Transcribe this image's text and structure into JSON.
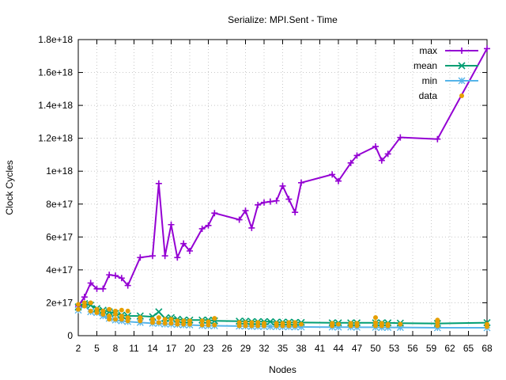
{
  "chart_data": {
    "type": "line",
    "title": "Serialize: MPI.Sent - Time",
    "xlabel": "Nodes",
    "ylabel": "Clock Cycles",
    "xlim": [
      2,
      68
    ],
    "ylim": [
      0,
      1.8e+18
    ],
    "x_ticks": [
      2,
      5,
      8,
      11,
      14,
      17,
      20,
      23,
      26,
      29,
      32,
      35,
      38,
      41,
      44,
      47,
      50,
      53,
      56,
      59,
      62,
      65,
      68
    ],
    "y_ticks": [
      0,
      2e+17,
      4e+17,
      6e+17,
      8e+17,
      1e+18,
      1.2e+18,
      1.4e+18,
      1.6e+18,
      1.8e+18
    ],
    "y_tick_labels": [
      "0",
      "2e+17",
      "4e+17",
      "6e+17",
      "8e+17",
      "1e+18",
      "1.2e+18",
      "1.4e+18",
      "1.6e+18",
      "1.8e+18"
    ],
    "grid": true,
    "legend_position": "top-right",
    "colors": {
      "max": "#9400d3",
      "mean": "#009e73",
      "min": "#56b4e9",
      "data": "#e69f00"
    },
    "series": [
      {
        "name": "max",
        "marker": "plus",
        "x": [
          2,
          3,
          4,
          5,
          6,
          7,
          8,
          9,
          10,
          12,
          14,
          15,
          16,
          17,
          18,
          19,
          20,
          22,
          23,
          24,
          28,
          29,
          30,
          31,
          32,
          33,
          34,
          35,
          36,
          37,
          38,
          43,
          44,
          46,
          47,
          50,
          51,
          52,
          54,
          60,
          68
        ],
        "y": [
          1.8e+17,
          2.35e+17,
          3.2e+17,
          2.85e+17,
          2.85e+17,
          3.7e+17,
          3.65e+17,
          3.5e+17,
          3.05e+17,
          4.75e+17,
          4.85e+17,
          9.25e+17,
          4.85e+17,
          6.75e+17,
          4.75e+17,
          5.6e+17,
          5.15e+17,
          6.5e+17,
          6.7e+17,
          7.45e+17,
          7.05e+17,
          7.6e+17,
          6.55e+17,
          7.95e+17,
          8.1e+17,
          8.15e+17,
          8.2e+17,
          9.1e+17,
          8.3e+17,
          7.5e+17,
          9.3e+17,
          9.8e+17,
          9.4e+17,
          1.05e+18,
          1.095e+18,
          1.15e+18,
          1.065e+18,
          1.105e+18,
          1.205e+18,
          1.195e+18,
          1.745e+18
        ]
      },
      {
        "name": "mean",
        "marker": "cross",
        "x": [
          2,
          3,
          4,
          5,
          6,
          7,
          8,
          9,
          10,
          12,
          14,
          15,
          16,
          17,
          18,
          19,
          20,
          22,
          23,
          24,
          28,
          29,
          30,
          31,
          32,
          33,
          34,
          35,
          36,
          37,
          38,
          43,
          44,
          46,
          47,
          50,
          51,
          52,
          54,
          60,
          68
        ],
        "y": [
          1.75e+17,
          1.95e+17,
          1.85e+17,
          1.65e+17,
          1.55e+17,
          1.45e+17,
          1.35e+17,
          1.25e+17,
          1.2e+17,
          1.2e+17,
          1.15e+17,
          1.45e+17,
          1.05e+17,
          1.1e+17,
          1e+17,
          9.5e+16,
          9.5e+16,
          9.5e+16,
          9.5e+16,
          9e+16,
          8.8e+16,
          8.8e+16,
          8.5e+16,
          8.5e+16,
          8.5e+16,
          8.5e+16,
          8.2e+16,
          8.2e+16,
          8.2e+16,
          8e+16,
          8e+16,
          7.8e+16,
          7.8e+16,
          7.8e+16,
          7.8e+16,
          7.8e+16,
          7.8e+16,
          7.8e+16,
          7.6e+16,
          7.4e+16,
          7.9e+16
        ]
      },
      {
        "name": "min",
        "marker": "star",
        "x": [
          2,
          3,
          4,
          5,
          6,
          7,
          8,
          9,
          10,
          12,
          14,
          15,
          16,
          17,
          18,
          19,
          20,
          22,
          23,
          24,
          28,
          29,
          30,
          31,
          32,
          33,
          34,
          35,
          36,
          37,
          38,
          43,
          44,
          46,
          47,
          50,
          51,
          52,
          54,
          60,
          68
        ],
        "y": [
          1.55e+17,
          1.85e+17,
          1.45e+17,
          1.4e+17,
          1.2e+17,
          1.05e+17,
          9.5e+16,
          9e+16,
          8.5e+16,
          8e+16,
          7.5e+16,
          7.5e+16,
          7e+16,
          7e+16,
          6.8e+16,
          6.5e+16,
          6.5e+16,
          6.2e+16,
          6e+16,
          6e+16,
          5.8e+16,
          5.8e+16,
          5.6e+16,
          5.6e+16,
          5.6e+16,
          5.5e+16,
          5.5e+16,
          5.4e+16,
          5.4e+16,
          5.3e+16,
          5.3e+16,
          5.2e+16,
          5.2e+16,
          5.2e+16,
          5.1e+16,
          5.1e+16,
          5e+16,
          5e+16,
          5e+16,
          4.8e+16,
          4.8e+16
        ]
      }
    ],
    "data_points": {
      "name": "data",
      "marker": "dot",
      "x": [
        2,
        2,
        3,
        3,
        4,
        4,
        5,
        5,
        6,
        6,
        7,
        7,
        7,
        8,
        8,
        8,
        9,
        9,
        9,
        10,
        10,
        10,
        12,
        12,
        14,
        14,
        15,
        15,
        16,
        16,
        17,
        17,
        18,
        18,
        19,
        19,
        20,
        20,
        22,
        22,
        23,
        23,
        24,
        24,
        28,
        28,
        29,
        29,
        30,
        30,
        31,
        31,
        32,
        32,
        34,
        34,
        35,
        35,
        36,
        36,
        37,
        37,
        38,
        43,
        43,
        44,
        46,
        46,
        47,
        47,
        50,
        50,
        50,
        51,
        51,
        52,
        52,
        54,
        60,
        60,
        60,
        68,
        68
      ],
      "y": [
        1.6e+17,
        1.9e+17,
        2e+17,
        1.8e+17,
        2e+17,
        1.5e+17,
        1.6e+17,
        1.4e+17,
        1.3e+17,
        1.5e+17,
        1.2e+17,
        1.6e+17,
        1e+17,
        1e+17,
        1.3e+17,
        1.5e+17,
        1e+17,
        1.2e+17,
        1.55e+17,
        9e+16,
        1.1e+17,
        1.5e+17,
        9e+16,
        1.1e+17,
        8e+16,
        1e+17,
        8e+16,
        1.1e+17,
        7.5e+16,
        1e+17,
        7.5e+16,
        1e+17,
        7e+16,
        9e+16,
        7e+16,
        9e+16,
        7e+16,
        9e+16,
        6.5e+16,
        9e+16,
        6.5e+16,
        8.5e+16,
        6.5e+16,
        1.05e+17,
        6e+16,
        8e+16,
        6e+16,
        8e+16,
        6e+16,
        8e+16,
        6e+16,
        8e+16,
        6e+16,
        7.5e+16,
        6e+16,
        7.5e+16,
        6e+16,
        7.5e+16,
        6e+16,
        8e+16,
        6e+16,
        8e+16,
        7e+16,
        6e+16,
        7.5e+16,
        7e+16,
        6e+16,
        7.5e+16,
        6e+16,
        7.5e+16,
        6e+16,
        8e+16,
        1.1e+17,
        6e+16,
        7.5e+16,
        6e+16,
        7e+16,
        7e+16,
        6e+16,
        8e+16,
        9.5e+16,
        5.5e+16,
        7e+16
      ]
    }
  }
}
